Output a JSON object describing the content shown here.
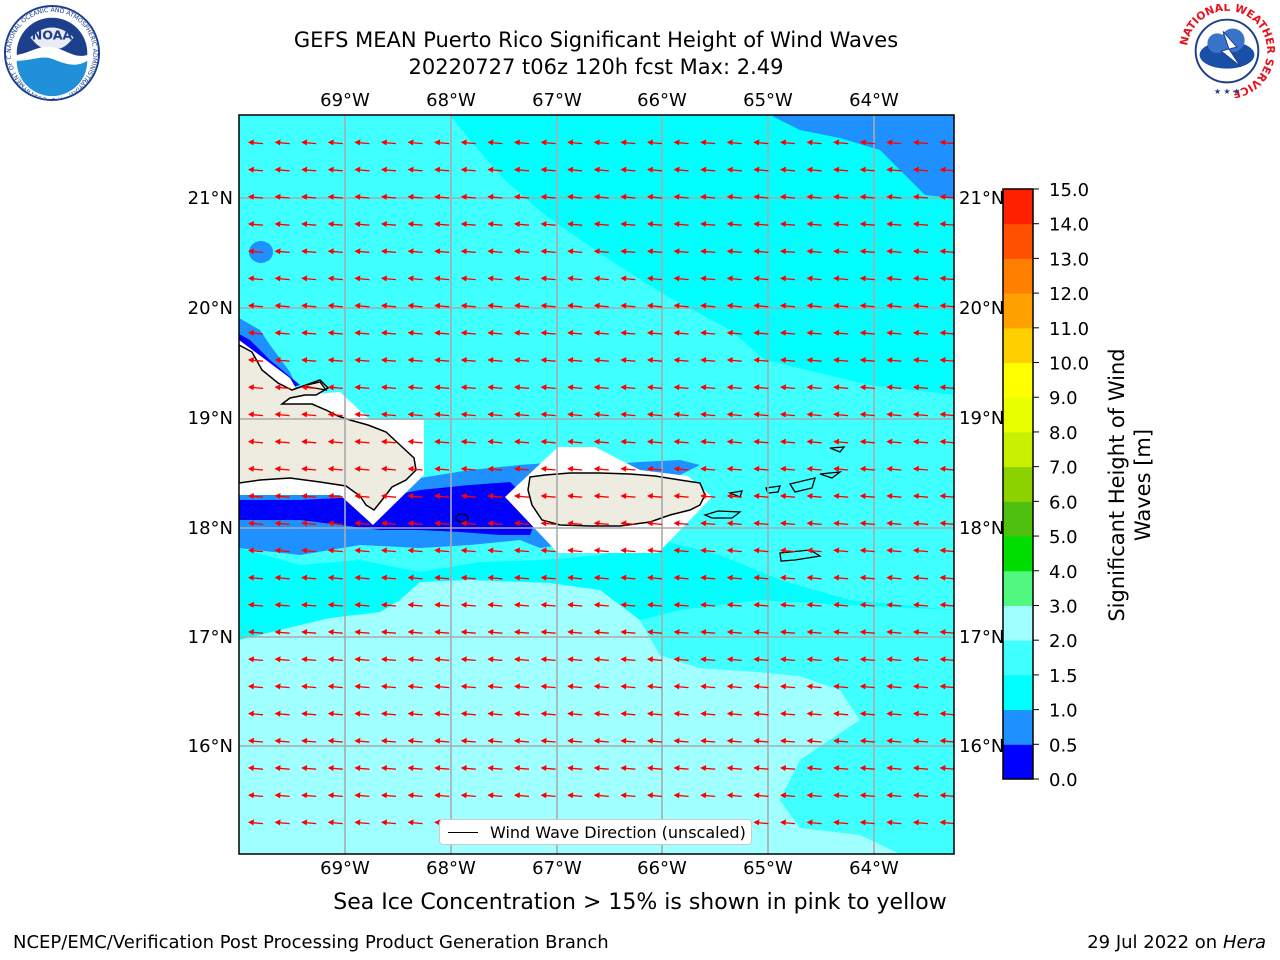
{
  "title": {
    "line1": "GEFS MEAN Puerto Rico Significant Height of Wind Waves",
    "line2": "20220727 t06z 120h fcst   Max: 2.49"
  },
  "map": {
    "lon_ticks": [
      "69°W",
      "68°W",
      "67°W",
      "66°W",
      "65°W",
      "64°W"
    ],
    "lat_ticks": [
      "21°N",
      "20°N",
      "19°N",
      "18°N",
      "17°N",
      "16°N"
    ],
    "lon_range": [
      -70.0,
      -63.25
    ],
    "lat_range": [
      15.0,
      21.75
    ],
    "field_max": 2.49,
    "vector_color": "#ff0000",
    "vector_direction": "westward (from east)",
    "land_color": "#eeece0"
  },
  "legend": {
    "label": "Wind Wave Direction (unscaled)"
  },
  "colorbar": {
    "title": "Significant Height of Wind Waves [m]",
    "title_line1": "Significant Height of Wind",
    "title_line2": "Waves [m]",
    "levels": [
      "0.0",
      "0.5",
      "1.0",
      "1.5",
      "2.0",
      "3.0",
      "4.0",
      "5.0",
      "6.0",
      "7.0",
      "8.0",
      "9.0",
      "10.0",
      "11.0",
      "12.0",
      "13.0",
      "14.0",
      "15.0"
    ],
    "colors": [
      "#0000ff",
      "#1e90ff",
      "#00ffff",
      "#40ffff",
      "#a0ffff",
      "#50f880",
      "#00dd00",
      "#50c010",
      "#8cd200",
      "#c8f000",
      "#e8ff00",
      "#ffff00",
      "#ffd000",
      "#ffa000",
      "#ff8000",
      "#ff5000",
      "#ff2000"
    ]
  },
  "footnote": "Sea Ice Concentration > 15% is shown in pink to yellow",
  "credits": {
    "left": "NCEP/EMC/Verification Post Processing Product Generation Branch",
    "date": "29 Jul 2022 on ",
    "host": "Hera"
  },
  "logos": {
    "noaa_text": "NOAA",
    "noaa_ring": "NATIONAL OCEANIC AND ATMOSPHERIC ADMINISTRATION · U.S. DEPARTMENT OF COMMERCE",
    "nws_ring": "NATIONAL WEATHER SERVICE"
  }
}
